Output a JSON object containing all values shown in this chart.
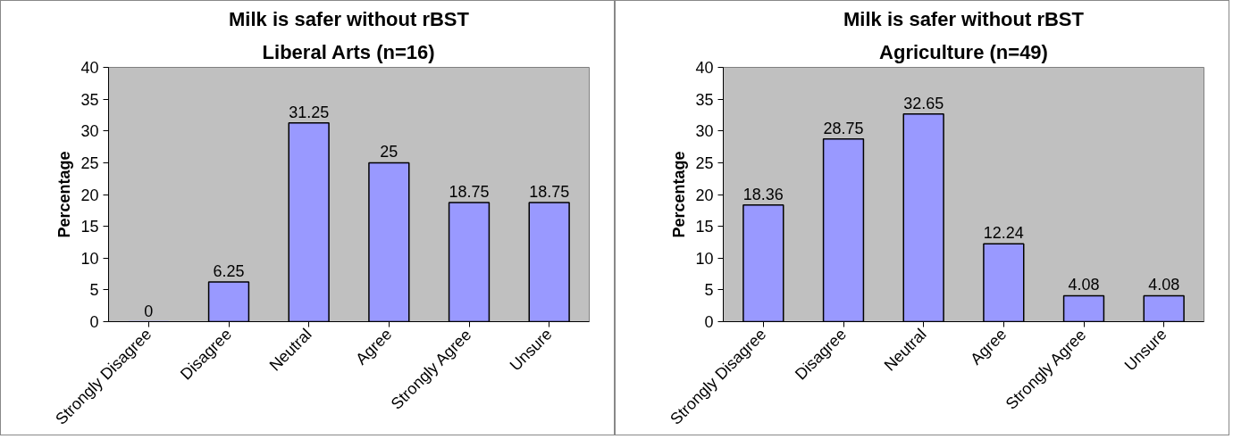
{
  "chart_data": [
    {
      "type": "bar",
      "title": "Milk is safer without rBST",
      "subtitle": "Liberal Arts (n=16)",
      "ylabel": "Percentage",
      "categories": [
        "Strongly Disagree",
        "Disagree",
        "Neutral",
        "Agree",
        "Strongly Agree",
        "Unsure"
      ],
      "values": [
        0,
        6.25,
        31.25,
        25,
        18.75,
        18.75
      ],
      "color": "#9999ff",
      "ylim": [
        0,
        40
      ],
      "yticks": [
        0,
        5,
        10,
        15,
        20,
        25,
        30,
        35,
        40
      ],
      "data_labels": true
    },
    {
      "type": "bar",
      "title": "Milk is safer without rBST",
      "subtitle": "Agriculture (n=49)",
      "ylabel": "Percentage",
      "categories": [
        "Strongly Disagree",
        "Disagree",
        "Neutral",
        "Agree",
        "Strongly Agree",
        "Unsure"
      ],
      "values": [
        18.36,
        28.75,
        32.65,
        12.24,
        4.08,
        4.08
      ],
      "color": "#9999ff",
      "ylim": [
        0,
        40
      ],
      "yticks": [
        0,
        5,
        10,
        15,
        20,
        25,
        30,
        35,
        40
      ],
      "data_labels": true
    }
  ]
}
